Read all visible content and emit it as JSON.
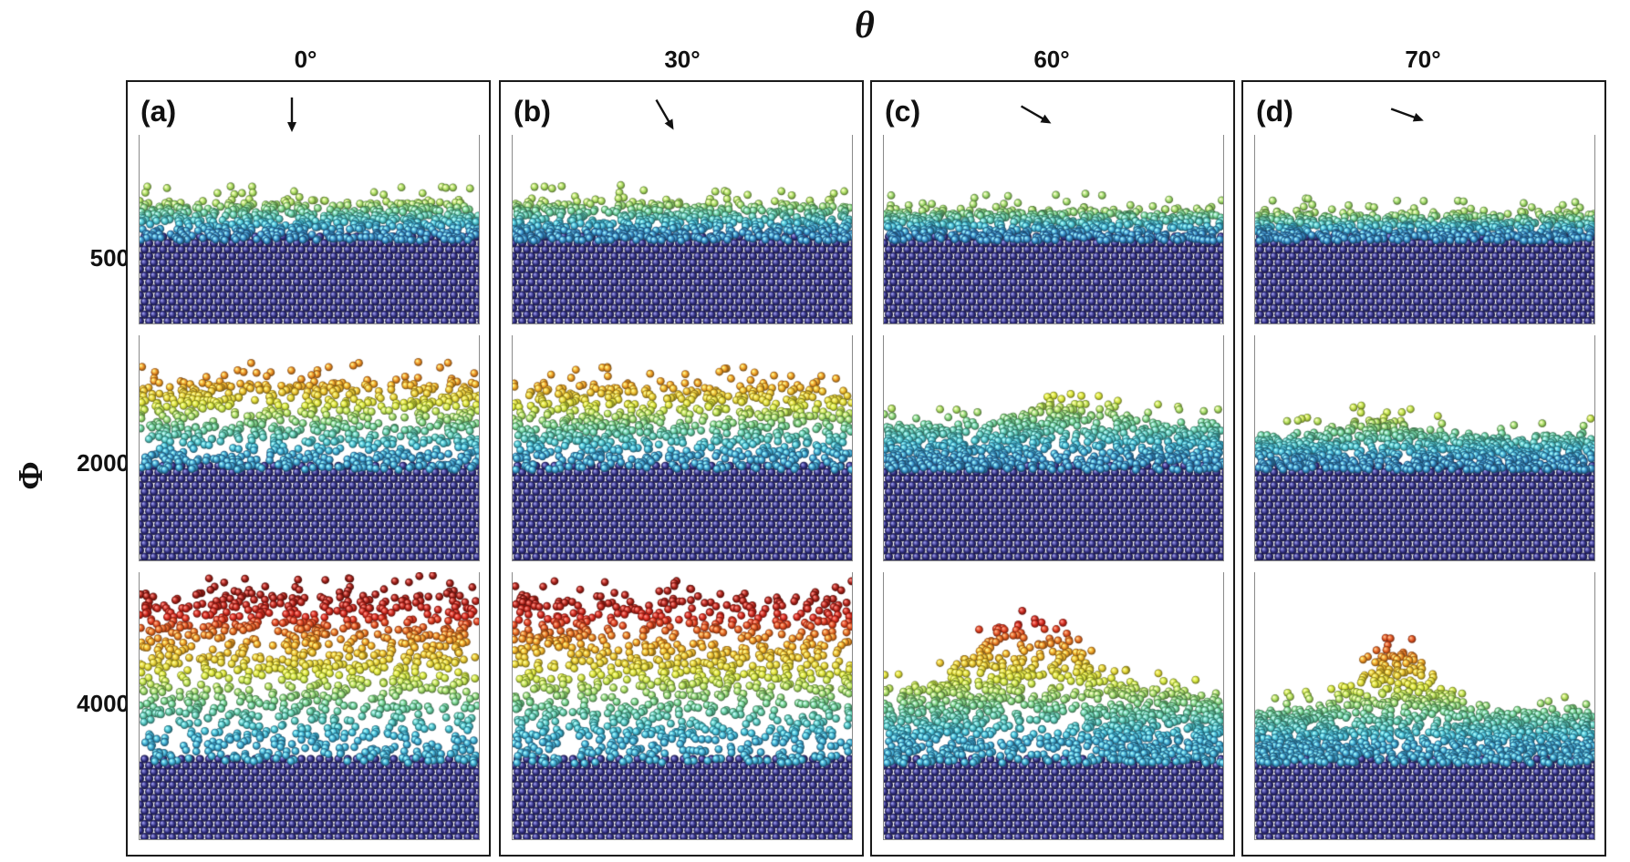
{
  "figure": {
    "column_axis_label": "θ",
    "row_axis_label": "Φ",
    "columns": [
      {
        "heading": "0°",
        "panel_label": "(a)",
        "arrow_angle_deg": 0
      },
      {
        "heading": "30°",
        "panel_label": "(b)",
        "arrow_angle_deg": 30
      },
      {
        "heading": "60°",
        "panel_label": "(c)",
        "arrow_angle_deg": 60
      },
      {
        "heading": "70°",
        "panel_label": "(d)",
        "arrow_angle_deg": 70
      }
    ],
    "rows": [
      {
        "label": "500"
      },
      {
        "label": "2000"
      },
      {
        "label": "4000"
      }
    ],
    "colors": {
      "substrate": "#2e2c7e",
      "colormap": [
        "#2e2c7e",
        "#2f6fc0",
        "#3fb8d4",
        "#6fd08c",
        "#d9e83a",
        "#f0a624",
        "#d8281c",
        "#8c1a14"
      ]
    }
  }
}
